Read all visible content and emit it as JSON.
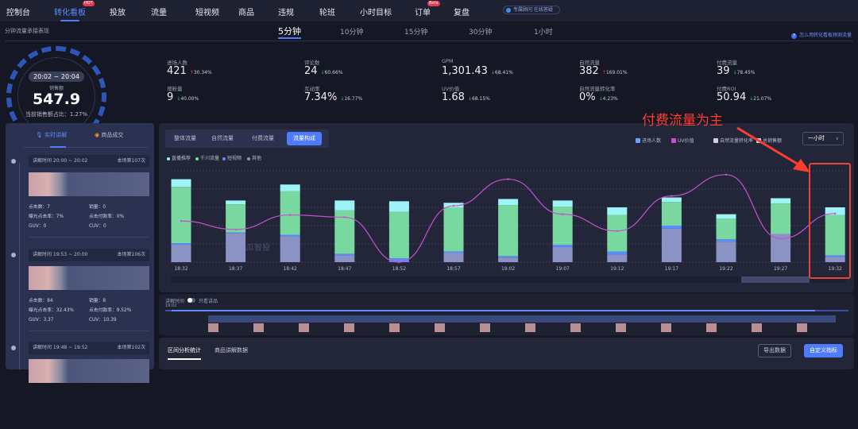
{
  "nav": {
    "items": [
      {
        "label": "控制台"
      },
      {
        "label": "转化看板",
        "tag": "HOT",
        "active": true
      },
      {
        "label": "投放"
      },
      {
        "label": "流量"
      },
      {
        "label": "短视频"
      },
      {
        "label": "商品"
      },
      {
        "label": "违规"
      },
      {
        "label": "轮班"
      },
      {
        "label": "小时目标"
      },
      {
        "label": "订单",
        "tag": "Beta"
      },
      {
        "label": "复盘"
      }
    ],
    "advisor": "专属顾问 在线答疑"
  },
  "subheader": {
    "title": "分钟流量承接表现",
    "granularity": [
      "5分钟",
      "10分钟",
      "15分钟",
      "30分钟",
      "1小时"
    ],
    "active": "5分钟",
    "help": "怎么用转化看板预测流量"
  },
  "gauge": {
    "time_range": "20:02 ~ 20:04",
    "label": "销售额",
    "value": "547.9",
    "share": "当前销售额占比：1.27%"
  },
  "stats": [
    {
      "label": "进场人数",
      "value": "421",
      "change": "30.34%",
      "dir": "up"
    },
    {
      "label": "评论数",
      "value": "24",
      "change": "60.66%",
      "dir": "down"
    },
    {
      "label": "GPM",
      "value": "1,301.43",
      "change": "68.41%",
      "dir": "down"
    },
    {
      "label": "自然流量",
      "value": "382",
      "change": "169.01%",
      "dir": "up"
    },
    {
      "label": "付费流量",
      "value": "39",
      "change": "78.45%",
      "dir": "down"
    },
    {
      "label": "增粉量",
      "value": "9",
      "change": "40.00%",
      "dir": "down"
    },
    {
      "label": "互动率",
      "value": "7.34%",
      "change": "16.77%",
      "dir": "down"
    },
    {
      "label": "UV价值",
      "value": "1.68",
      "change": "68.15%",
      "dir": "down"
    },
    {
      "label": "自然流量转化率",
      "value": "0%",
      "change": "4.23%",
      "dir": "down"
    },
    {
      "label": "付费ROI",
      "value": "50.94",
      "change": "21.07%",
      "dir": "down"
    }
  ],
  "left_panel": {
    "tabs": [
      "实时讲解",
      "商品成交"
    ],
    "cards": [
      {
        "time": "讲解时间 20:00 ~ 20:02",
        "count": "本场第107次",
        "clicks": "点击数：7",
        "sales": "销量：0",
        "ctr": "曝光点击率：7%",
        "cvr": "点击付款率：0%",
        "guv": "GUV：0",
        "cuv": "CUV：0"
      },
      {
        "time": "讲解时间 19:53 ~ 20:00",
        "count": "本场第106次",
        "clicks": "点击数：84",
        "sales": "销量：8",
        "ctr": "曝光点击率：32.43%",
        "cvr": "点击付款率：9.52%",
        "guv": "GUV：3.37",
        "cuv": "CUV：10.39"
      },
      {
        "time": "讲解时间 19:48 ~ 19:52",
        "count": "本场第102次"
      }
    ]
  },
  "chart_panel": {
    "tabs": [
      "整体流量",
      "自然流量",
      "付费流量",
      "流量构成"
    ],
    "active_tab": "流量构成",
    "metric_legend": [
      "进场人数",
      "UV价值",
      "自然流量转化率",
      "总销售额"
    ],
    "range": "一小时",
    "watermark": "飞瓜智投"
  },
  "chart_data": {
    "type": "bar",
    "stacked": true,
    "categories": [
      "18:32",
      "18:37",
      "18:42",
      "18:47",
      "18:52",
      "18:57",
      "19:02",
      "19:07",
      "19:12",
      "19:17",
      "19:22",
      "19:27",
      "19:32"
    ],
    "series": [
      {
        "name": "其他",
        "color": "#8b93c4",
        "values": [
          23,
          38,
          34,
          9,
          0,
          12,
          6,
          20,
          10,
          44,
          27,
          37,
          7
        ]
      },
      {
        "name": "短视频",
        "color": "#5b8cff",
        "values": [
          2,
          1,
          2,
          2,
          5,
          2,
          2,
          3,
          4,
          4,
          3,
          0,
          2
        ]
      },
      {
        "name": "千川流量",
        "color": "#79d89f",
        "values": [
          74,
          37,
          57,
          57,
          61,
          58,
          67,
          50,
          48,
          31,
          27,
          40,
          53
        ]
      },
      {
        "name": "直播推荐",
        "color": "#9ef3f7",
        "values": [
          10,
          5,
          9,
          13,
          14,
          6,
          8,
          8,
          10,
          6,
          6,
          7,
          10
        ]
      }
    ],
    "line": {
      "name": "UV价值",
      "color": "#c850d0",
      "values": [
        54,
        43,
        62,
        59,
        0,
        74,
        109,
        63,
        41,
        87,
        115,
        31,
        64
      ]
    },
    "ylim": [
      0,
      120
    ],
    "grid": true,
    "legend": "top-left"
  },
  "timeline": {
    "label": "讲解时间",
    "toggle": "只看讲品",
    "start": "19:02"
  },
  "bottom": {
    "tabs": [
      "区间分析统计",
      "商品讲解数据"
    ],
    "export": "导出数据",
    "custom": "自定义指标"
  },
  "annotation": "付费流量为主"
}
